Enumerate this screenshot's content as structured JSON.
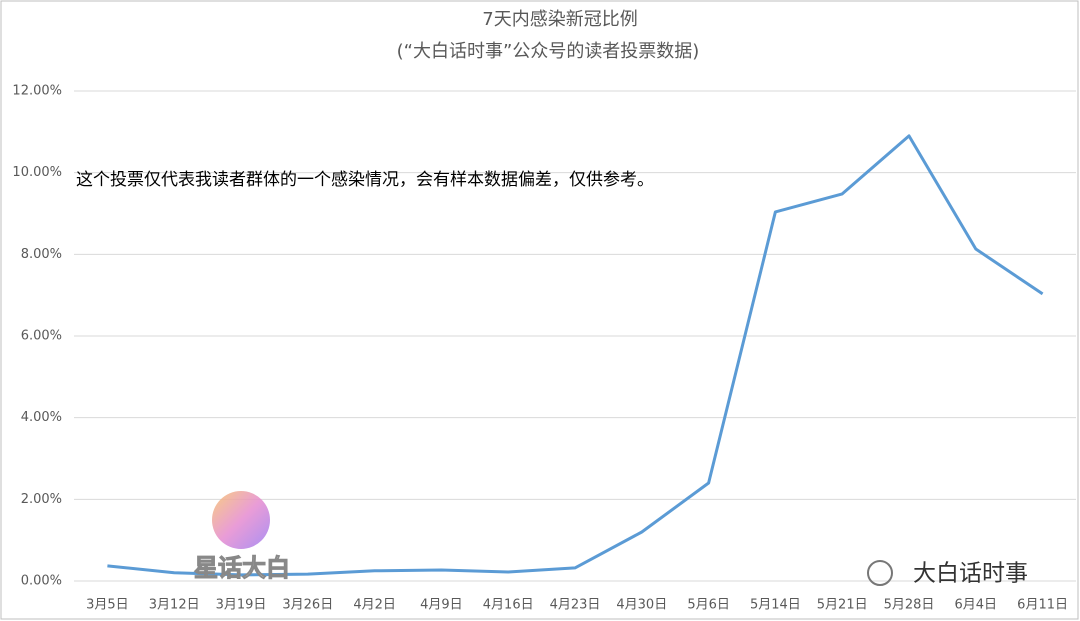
{
  "chart_data": {
    "type": "line",
    "title": "7天内感染新冠比例",
    "subtitle": "(“大白话时事”公众号的读者投票数据)",
    "categories": [
      "3月5日",
      "3月12日",
      "3月19日",
      "3月26日",
      "4月2日",
      "4月9日",
      "4月16日",
      "4月23日",
      "4月30日",
      "5月6日",
      "5月14日",
      "5月21日",
      "5月28日",
      "6月4日",
      "6月11日"
    ],
    "series": [
      {
        "color": "#5b9bd5",
        "values": [
          0.37,
          0.2,
          0.15,
          0.17,
          0.25,
          0.27,
          0.22,
          0.32,
          1.2,
          2.4,
          9.04,
          9.48,
          10.9,
          8.13,
          7.03
        ]
      }
    ],
    "ylim": [
      0,
      12
    ],
    "yticks": [
      {
        "value": 0,
        "label": "0.00%"
      },
      {
        "value": 2,
        "label": "2.00%"
      },
      {
        "value": 4,
        "label": "4.00%"
      },
      {
        "value": 6,
        "label": "6.00%"
      },
      {
        "value": 8,
        "label": "8.00%"
      },
      {
        "value": 10,
        "label": "10.00%"
      },
      {
        "value": 12,
        "label": "12.00%"
      }
    ],
    "grid": true,
    "annotations": [
      "这个投票仅代表我读者群体的一个感染情况，会有样本数据偏差，仅供参考。",
      "星话大白",
      "大白话时事"
    ]
  }
}
